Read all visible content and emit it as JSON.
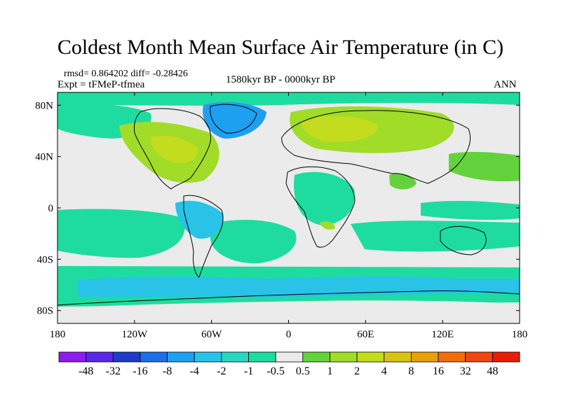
{
  "header": {
    "title": "Coldest Month Mean Surface Air Temperature (in C)",
    "stats": "rmsd= 0.864202 diff= -0.28426",
    "experiment": "Expt = tFMeP-tfmea",
    "period": "1580kyr BP - 0000kyr BP",
    "season": "ANN"
  },
  "axes": {
    "lat_ticks": [
      {
        "label": "80N",
        "lat": 80
      },
      {
        "label": "40N",
        "lat": 40
      },
      {
        "label": "0",
        "lat": 0
      },
      {
        "label": "40S",
        "lat": -40
      },
      {
        "label": "80S",
        "lat": -80
      }
    ],
    "lon_ticks": [
      {
        "label": "180",
        "lon": -180
      },
      {
        "label": "120W",
        "lon": -120
      },
      {
        "label": "60W",
        "lon": -60
      },
      {
        "label": "0",
        "lon": 0
      },
      {
        "label": "60E",
        "lon": 60
      },
      {
        "label": "120E",
        "lon": 120
      },
      {
        "label": "180",
        "lon": 180
      }
    ]
  },
  "colorbar": {
    "colors": [
      "#8c1ef0",
      "#5a28e6",
      "#1e3cc8",
      "#1e6ee6",
      "#1ea0f0",
      "#28c3e6",
      "#28d7c3",
      "#1edca0",
      "#ebebeb",
      "#64d23c",
      "#a0dc28",
      "#c3dc1e",
      "#d7c314",
      "#e6a00a",
      "#f06e0a",
      "#f04614",
      "#e61e0a"
    ],
    "labels": [
      "-48",
      "-32",
      "-16",
      "-8",
      "-4",
      "-2",
      "-1",
      "-0.5",
      "0.5",
      "1",
      "2",
      "4",
      "8",
      "16",
      "32",
      "48"
    ]
  }
}
